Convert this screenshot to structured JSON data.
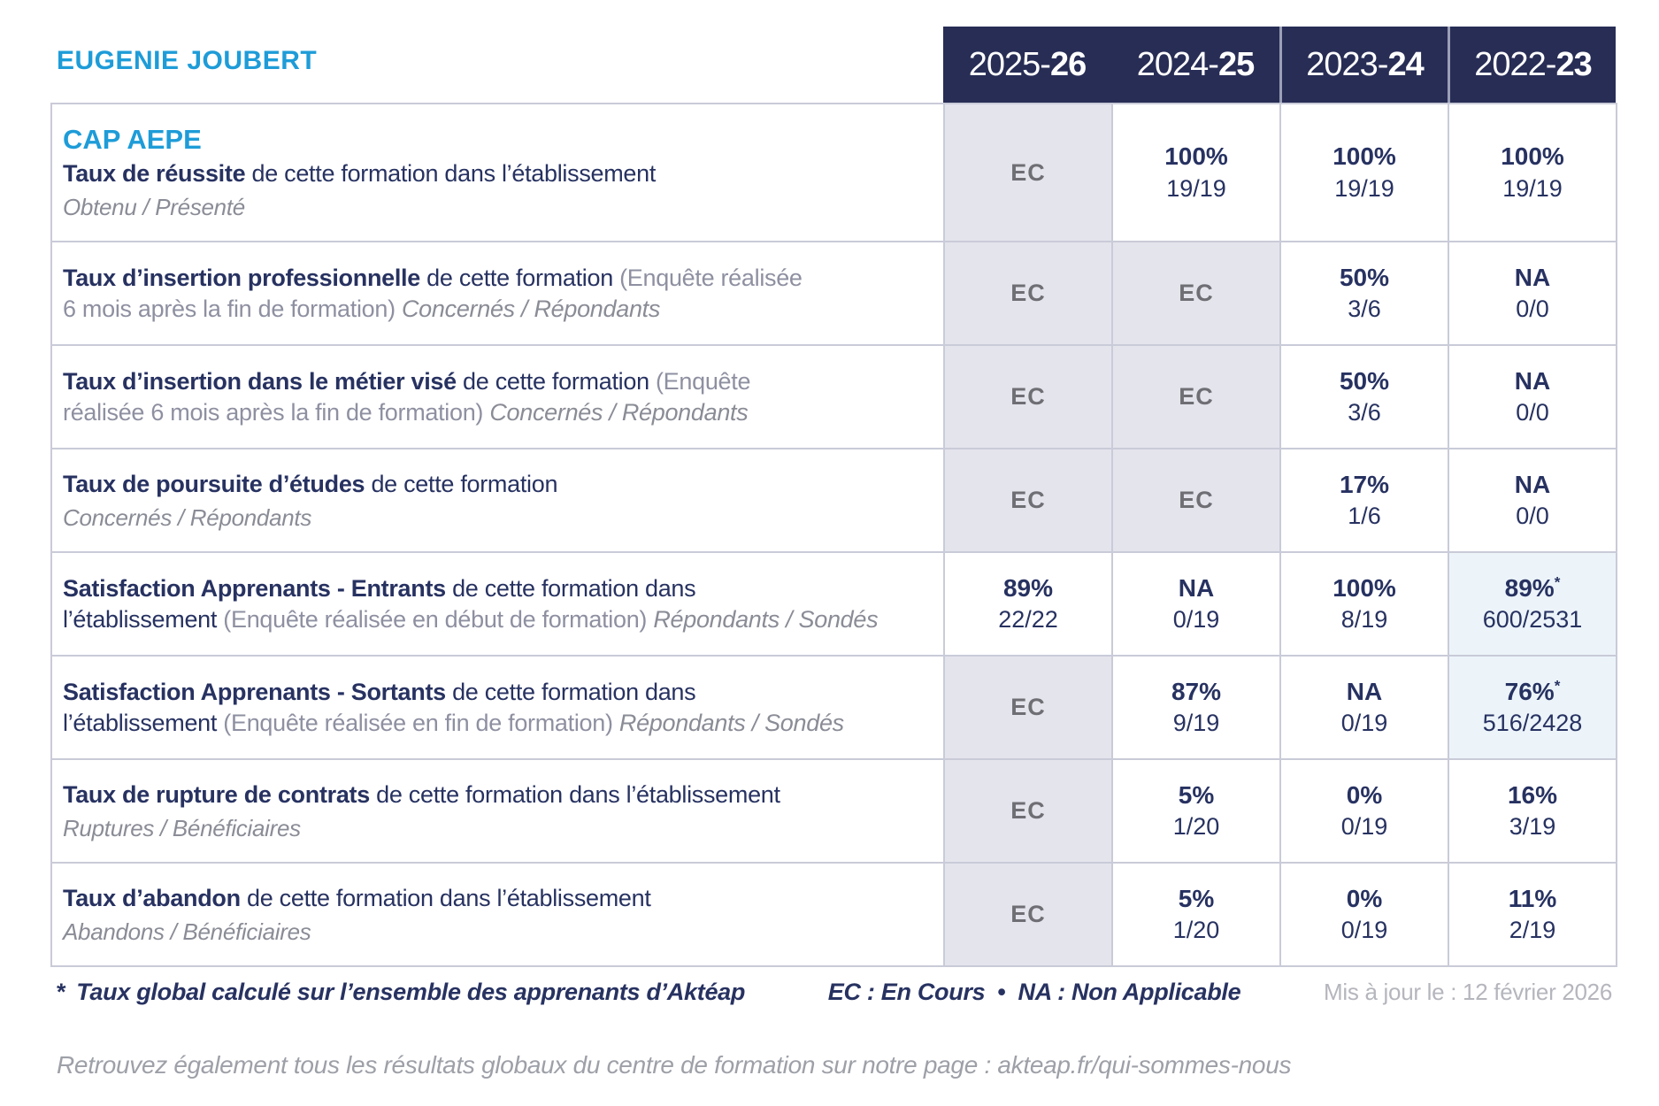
{
  "colors": {
    "accent_blue": "#1E9CD8",
    "navy_text": "#273261",
    "header_band": "#272D55",
    "ec_cell_bg": "#E4E4ED",
    "highlight_cell_bg": "#ECF4FA",
    "grid_border": "#C9CBD8",
    "gray_text": "#8E90A1",
    "ec_text": "#6E6E74"
  },
  "header": {
    "title": "EUGENIE JOUBERT",
    "years": [
      {
        "pre": "2025-",
        "bold": "26"
      },
      {
        "pre": "2024-",
        "bold": "25"
      },
      {
        "pre": "2023-",
        "bold": "24"
      },
      {
        "pre": "2022-",
        "bold": "23"
      }
    ]
  },
  "table": {
    "rows": [
      {
        "pre_title": "CAP AEPE",
        "segments": [
          {
            "s": "b",
            "t": "Taux de réussite"
          },
          {
            "s": "r",
            "t": " de cette formation dans l’établissement"
          }
        ],
        "subline": "Obtenu / Présenté",
        "cells": [
          {
            "kind": "ec",
            "v": "EC"
          },
          {
            "kind": "val",
            "v": "100%",
            "f": "19/19"
          },
          {
            "kind": "val",
            "v": "100%",
            "f": "19/19"
          },
          {
            "kind": "val",
            "v": "100%",
            "f": "19/19"
          }
        ]
      },
      {
        "segments": [
          {
            "s": "b",
            "t": "Taux d’insertion professionnelle"
          },
          {
            "s": "r",
            "t": " de cette formation "
          },
          {
            "s": "g",
            "t": "(Enquête réalisée"
          },
          {
            "s": "br",
            "t": ""
          },
          {
            "s": "g",
            "t": "6 mois après la fin de formation) "
          },
          {
            "s": "gi",
            "t": "Concernés / Répondants"
          }
        ],
        "cells": [
          {
            "kind": "ec",
            "v": "EC"
          },
          {
            "kind": "ec",
            "v": "EC"
          },
          {
            "kind": "val",
            "v": "50%",
            "f": "3/6"
          },
          {
            "kind": "val",
            "v": "NA",
            "f": "0/0"
          }
        ]
      },
      {
        "segments": [
          {
            "s": "b",
            "t": "Taux d’insertion dans le métier visé"
          },
          {
            "s": "r",
            "t": " de cette formation "
          },
          {
            "s": "g",
            "t": "(Enquête"
          },
          {
            "s": "br",
            "t": ""
          },
          {
            "s": "g",
            "t": "réalisée 6 mois après la fin de formation) "
          },
          {
            "s": "gi",
            "t": "Concernés / Répondants"
          }
        ],
        "cells": [
          {
            "kind": "ec",
            "v": "EC"
          },
          {
            "kind": "ec",
            "v": "EC"
          },
          {
            "kind": "val",
            "v": "50%",
            "f": "3/6"
          },
          {
            "kind": "val",
            "v": "NA",
            "f": "0/0"
          }
        ]
      },
      {
        "segments": [
          {
            "s": "b",
            "t": "Taux de poursuite d’études"
          },
          {
            "s": "r",
            "t": " de cette formation"
          }
        ],
        "subline": "Concernés / Répondants",
        "cells": [
          {
            "kind": "ec",
            "v": "EC"
          },
          {
            "kind": "ec",
            "v": "EC"
          },
          {
            "kind": "val",
            "v": "17%",
            "f": "1/6"
          },
          {
            "kind": "val",
            "v": "NA",
            "f": "0/0"
          }
        ]
      },
      {
        "segments": [
          {
            "s": "b",
            "t": "Satisfaction Apprenants - Entrants"
          },
          {
            "s": "r",
            "t": " de cette formation dans"
          },
          {
            "s": "br",
            "t": ""
          },
          {
            "s": "r",
            "t": "l’établissement "
          },
          {
            "s": "g",
            "t": "(Enquête réalisée en début de formation) "
          },
          {
            "s": "gi",
            "t": "Répondants / Sondés"
          }
        ],
        "cells": [
          {
            "kind": "val",
            "v": "89%",
            "f": "22/22"
          },
          {
            "kind": "val",
            "v": "NA",
            "f": "0/19"
          },
          {
            "kind": "val",
            "v": "100%",
            "f": "8/19"
          },
          {
            "kind": "val",
            "v": "89%",
            "f": "600/2531",
            "star": true,
            "hl": true
          }
        ]
      },
      {
        "segments": [
          {
            "s": "b",
            "t": "Satisfaction Apprenants - Sortants"
          },
          {
            "s": "r",
            "t": " de cette formation dans"
          },
          {
            "s": "br",
            "t": ""
          },
          {
            "s": "r",
            "t": "l’établissement "
          },
          {
            "s": "g",
            "t": "(Enquête réalisée en fin de formation) "
          },
          {
            "s": "gi",
            "t": "Répondants / Sondés"
          }
        ],
        "cells": [
          {
            "kind": "ec",
            "v": "EC"
          },
          {
            "kind": "val",
            "v": "87%",
            "f": "9/19"
          },
          {
            "kind": "val",
            "v": "NA",
            "f": "0/19"
          },
          {
            "kind": "val",
            "v": "76%",
            "f": "516/2428",
            "star": true,
            "hl": true
          }
        ]
      },
      {
        "segments": [
          {
            "s": "b",
            "t": "Taux de rupture de contrats"
          },
          {
            "s": "r",
            "t": " de cette formation dans l’établissement"
          }
        ],
        "subline": "Ruptures / Bénéficiaires",
        "cells": [
          {
            "kind": "ec",
            "v": "EC"
          },
          {
            "kind": "val",
            "v": "5%",
            "f": "1/20"
          },
          {
            "kind": "val",
            "v": "0%",
            "f": "0/19"
          },
          {
            "kind": "val",
            "v": "16%",
            "f": "3/19"
          }
        ]
      },
      {
        "segments": [
          {
            "s": "b",
            "t": "Taux d’abandon"
          },
          {
            "s": "r",
            "t": " de cette formation dans l’établissement"
          }
        ],
        "subline": "Abandons / Bénéficiaires",
        "cells": [
          {
            "kind": "ec",
            "v": "EC"
          },
          {
            "kind": "val",
            "v": "5%",
            "f": "1/20"
          },
          {
            "kind": "val",
            "v": "0%",
            "f": "0/19"
          },
          {
            "kind": "val",
            "v": "11%",
            "f": "2/19"
          }
        ]
      }
    ]
  },
  "footer": {
    "star": "*",
    "note": "Taux global calculé sur l’ensemble des apprenants d’Aktéap",
    "legend_ec": "EC : En Cours",
    "bullet": "•",
    "legend_na": "NA : Non Applicable",
    "updated": "Mis à jour le : 12 février 2026",
    "bottom_note": "Retrouvez également tous les résultats globaux du centre de formation sur notre page : akteap.fr/qui-sommes-nous"
  }
}
